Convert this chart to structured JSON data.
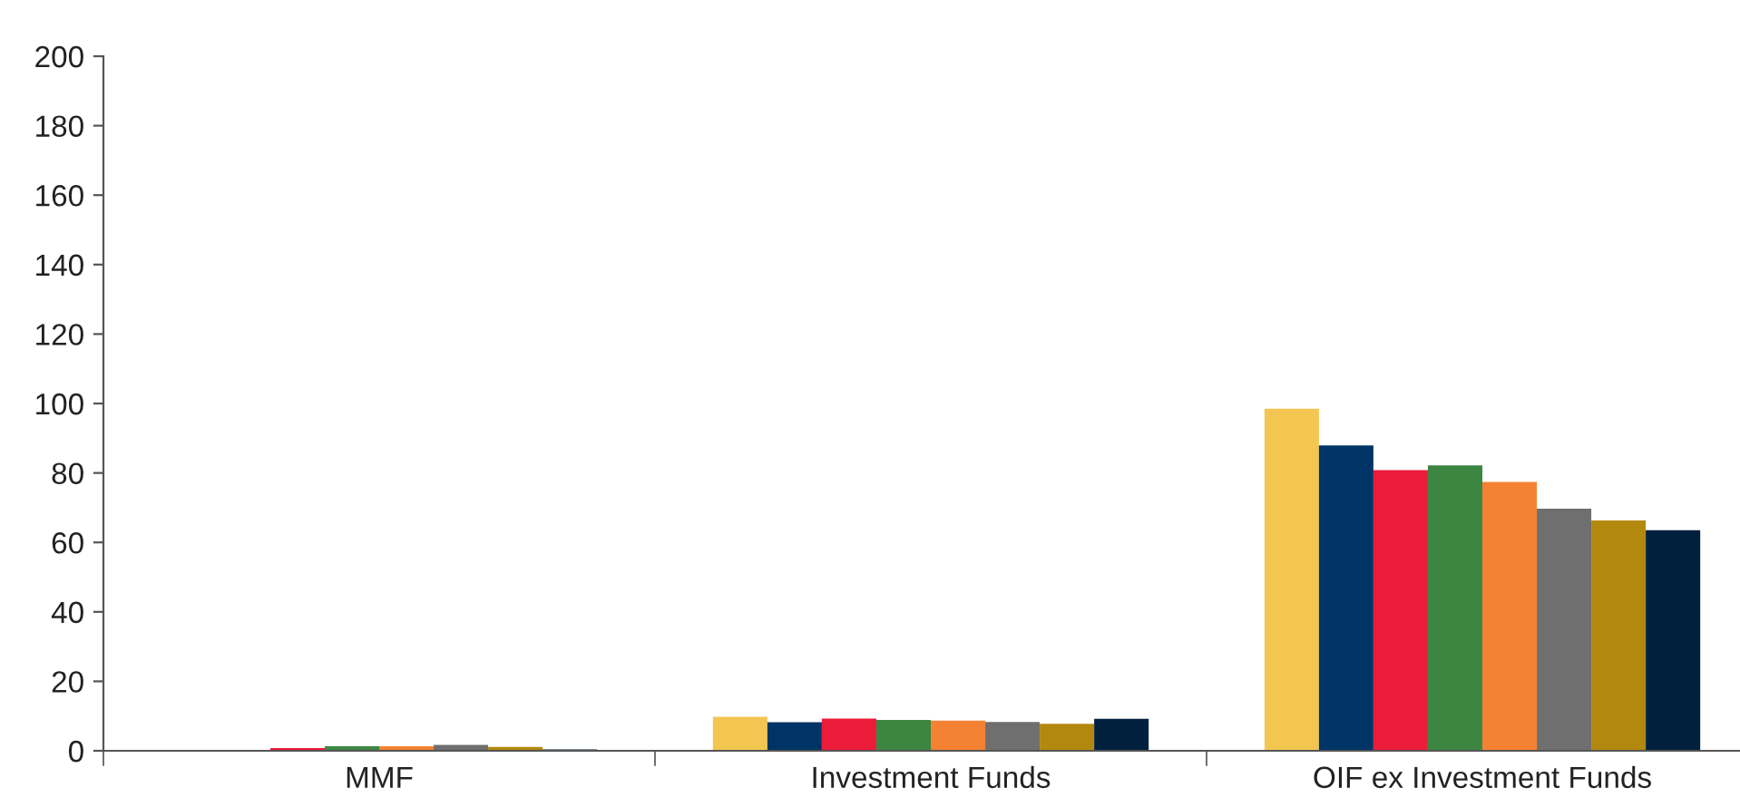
{
  "chart_data": {
    "type": "bar",
    "categories": [
      "MMF",
      "Investment Funds",
      "OIF ex Investment Funds"
    ],
    "series": [
      {
        "color": "#f2c651",
        "values": [
          null,
          9.8,
          98.5
        ]
      },
      {
        "color": "#003466",
        "values": [
          null,
          8.2,
          87.9
        ]
      },
      {
        "color": "#ed1b3a",
        "values": [
          0.8,
          9.3,
          80.8
        ]
      },
      {
        "color": "#3c8641",
        "values": [
          1.3,
          8.9,
          82.2
        ]
      },
      {
        "color": "#f58233",
        "values": [
          1.3,
          8.7,
          77.4
        ]
      },
      {
        "color": "#6f6f6f",
        "values": [
          1.7,
          8.3,
          69.7
        ]
      },
      {
        "color": "#b3880f",
        "values": [
          1.1,
          7.8,
          66.3
        ]
      },
      {
        "color": "#00203e",
        "values": [
          0.4,
          9.2,
          63.5
        ]
      }
    ],
    "ylim": [
      0,
      200
    ],
    "yticks": [
      0,
      20,
      40,
      60,
      80,
      100,
      120,
      140,
      160,
      180,
      200
    ],
    "grid": false,
    "legend": false
  }
}
